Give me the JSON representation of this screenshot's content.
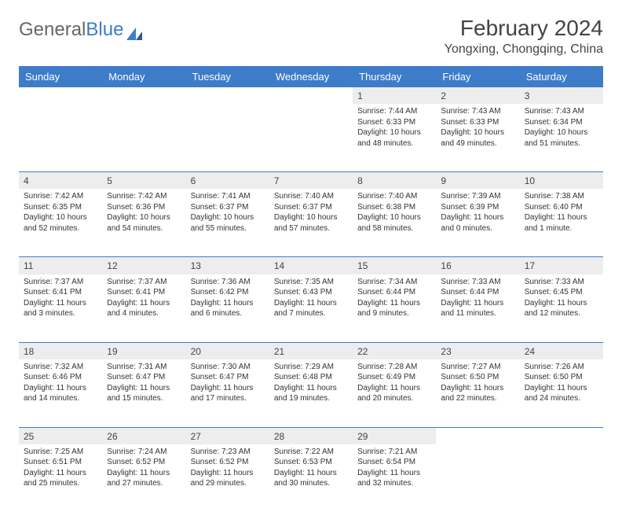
{
  "brand": {
    "part1": "General",
    "part2": "Blue"
  },
  "title": "February 2024",
  "location": "Yongxing, Chongqing, China",
  "colors": {
    "header_bg": "#3d7cc9",
    "header_text": "#ffffff",
    "daynum_bg": "#ededed",
    "row_border": "#3d7cc9",
    "body_text": "#333333",
    "title_text": "#444444"
  },
  "weekdays": [
    "Sunday",
    "Monday",
    "Tuesday",
    "Wednesday",
    "Thursday",
    "Friday",
    "Saturday"
  ],
  "weeks": [
    [
      null,
      null,
      null,
      null,
      {
        "d": "1",
        "sr": "Sunrise: 7:44 AM",
        "ss": "Sunset: 6:33 PM",
        "dl": "Daylight: 10 hours and 48 minutes."
      },
      {
        "d": "2",
        "sr": "Sunrise: 7:43 AM",
        "ss": "Sunset: 6:33 PM",
        "dl": "Daylight: 10 hours and 49 minutes."
      },
      {
        "d": "3",
        "sr": "Sunrise: 7:43 AM",
        "ss": "Sunset: 6:34 PM",
        "dl": "Daylight: 10 hours and 51 minutes."
      }
    ],
    [
      {
        "d": "4",
        "sr": "Sunrise: 7:42 AM",
        "ss": "Sunset: 6:35 PM",
        "dl": "Daylight: 10 hours and 52 minutes."
      },
      {
        "d": "5",
        "sr": "Sunrise: 7:42 AM",
        "ss": "Sunset: 6:36 PM",
        "dl": "Daylight: 10 hours and 54 minutes."
      },
      {
        "d": "6",
        "sr": "Sunrise: 7:41 AM",
        "ss": "Sunset: 6:37 PM",
        "dl": "Daylight: 10 hours and 55 minutes."
      },
      {
        "d": "7",
        "sr": "Sunrise: 7:40 AM",
        "ss": "Sunset: 6:37 PM",
        "dl": "Daylight: 10 hours and 57 minutes."
      },
      {
        "d": "8",
        "sr": "Sunrise: 7:40 AM",
        "ss": "Sunset: 6:38 PM",
        "dl": "Daylight: 10 hours and 58 minutes."
      },
      {
        "d": "9",
        "sr": "Sunrise: 7:39 AM",
        "ss": "Sunset: 6:39 PM",
        "dl": "Daylight: 11 hours and 0 minutes."
      },
      {
        "d": "10",
        "sr": "Sunrise: 7:38 AM",
        "ss": "Sunset: 6:40 PM",
        "dl": "Daylight: 11 hours and 1 minute."
      }
    ],
    [
      {
        "d": "11",
        "sr": "Sunrise: 7:37 AM",
        "ss": "Sunset: 6:41 PM",
        "dl": "Daylight: 11 hours and 3 minutes."
      },
      {
        "d": "12",
        "sr": "Sunrise: 7:37 AM",
        "ss": "Sunset: 6:41 PM",
        "dl": "Daylight: 11 hours and 4 minutes."
      },
      {
        "d": "13",
        "sr": "Sunrise: 7:36 AM",
        "ss": "Sunset: 6:42 PM",
        "dl": "Daylight: 11 hours and 6 minutes."
      },
      {
        "d": "14",
        "sr": "Sunrise: 7:35 AM",
        "ss": "Sunset: 6:43 PM",
        "dl": "Daylight: 11 hours and 7 minutes."
      },
      {
        "d": "15",
        "sr": "Sunrise: 7:34 AM",
        "ss": "Sunset: 6:44 PM",
        "dl": "Daylight: 11 hours and 9 minutes."
      },
      {
        "d": "16",
        "sr": "Sunrise: 7:33 AM",
        "ss": "Sunset: 6:44 PM",
        "dl": "Daylight: 11 hours and 11 minutes."
      },
      {
        "d": "17",
        "sr": "Sunrise: 7:33 AM",
        "ss": "Sunset: 6:45 PM",
        "dl": "Daylight: 11 hours and 12 minutes."
      }
    ],
    [
      {
        "d": "18",
        "sr": "Sunrise: 7:32 AM",
        "ss": "Sunset: 6:46 PM",
        "dl": "Daylight: 11 hours and 14 minutes."
      },
      {
        "d": "19",
        "sr": "Sunrise: 7:31 AM",
        "ss": "Sunset: 6:47 PM",
        "dl": "Daylight: 11 hours and 15 minutes."
      },
      {
        "d": "20",
        "sr": "Sunrise: 7:30 AM",
        "ss": "Sunset: 6:47 PM",
        "dl": "Daylight: 11 hours and 17 minutes."
      },
      {
        "d": "21",
        "sr": "Sunrise: 7:29 AM",
        "ss": "Sunset: 6:48 PM",
        "dl": "Daylight: 11 hours and 19 minutes."
      },
      {
        "d": "22",
        "sr": "Sunrise: 7:28 AM",
        "ss": "Sunset: 6:49 PM",
        "dl": "Daylight: 11 hours and 20 minutes."
      },
      {
        "d": "23",
        "sr": "Sunrise: 7:27 AM",
        "ss": "Sunset: 6:50 PM",
        "dl": "Daylight: 11 hours and 22 minutes."
      },
      {
        "d": "24",
        "sr": "Sunrise: 7:26 AM",
        "ss": "Sunset: 6:50 PM",
        "dl": "Daylight: 11 hours and 24 minutes."
      }
    ],
    [
      {
        "d": "25",
        "sr": "Sunrise: 7:25 AM",
        "ss": "Sunset: 6:51 PM",
        "dl": "Daylight: 11 hours and 25 minutes."
      },
      {
        "d": "26",
        "sr": "Sunrise: 7:24 AM",
        "ss": "Sunset: 6:52 PM",
        "dl": "Daylight: 11 hours and 27 minutes."
      },
      {
        "d": "27",
        "sr": "Sunrise: 7:23 AM",
        "ss": "Sunset: 6:52 PM",
        "dl": "Daylight: 11 hours and 29 minutes."
      },
      {
        "d": "28",
        "sr": "Sunrise: 7:22 AM",
        "ss": "Sunset: 6:53 PM",
        "dl": "Daylight: 11 hours and 30 minutes."
      },
      {
        "d": "29",
        "sr": "Sunrise: 7:21 AM",
        "ss": "Sunset: 6:54 PM",
        "dl": "Daylight: 11 hours and 32 minutes."
      },
      null,
      null
    ]
  ]
}
